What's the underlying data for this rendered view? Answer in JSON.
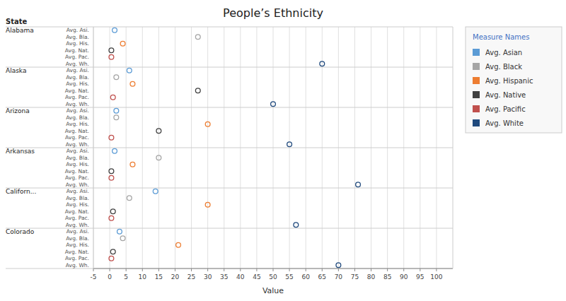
{
  "chart_data": {
    "type": "dot_plot",
    "title": "People’s Ethnicity",
    "xlabel": "Value",
    "ylabel": "State",
    "xlim": [
      -5,
      105
    ],
    "xticks": [
      -5,
      0,
      5,
      10,
      15,
      20,
      25,
      30,
      35,
      40,
      45,
      50,
      55,
      60,
      65,
      70,
      75,
      80,
      85,
      90,
      95,
      100
    ],
    "grid": true,
    "legend": "right",
    "legend_title": "Measure Names",
    "groups": [
      "Alabama",
      "Alaska",
      "Arizona",
      "Arkansas",
      "Californ...",
      "Colorado"
    ],
    "categories": [
      "Avg. Asi.",
      "Avg. Bla.",
      "Avg. His.",
      "Avg. Nat.",
      "Avg. Pac.",
      "Avg. Wh."
    ],
    "marker": "open_circle",
    "series": [
      {
        "name": "Avg. Asian",
        "color": "#5B9BD5",
        "values": [
          1.5,
          6.0,
          2.0,
          1.5,
          14.0,
          3.0
        ]
      },
      {
        "name": "Avg. Black",
        "color": "#A5A5A5",
        "values": [
          27.0,
          2.0,
          2.0,
          15.0,
          6.0,
          4.0
        ]
      },
      {
        "name": "Avg. Hispanic",
        "color": "#ED7D31",
        "values": [
          4.0,
          7.0,
          30.0,
          7.0,
          30.0,
          21.0
        ]
      },
      {
        "name": "Avg. Native",
        "color": "#404040",
        "values": [
          0.5,
          27.0,
          15.0,
          0.5,
          1.0,
          1.0
        ]
      },
      {
        "name": "Avg. Pacific",
        "color": "#C0504D",
        "values": [
          0.5,
          1.0,
          0.5,
          0.5,
          0.5,
          0.5
        ]
      },
      {
        "name": "Avg. White",
        "color": "#1F497D",
        "values": [
          65.0,
          50.0,
          55.0,
          76.0,
          57.0,
          70.0
        ]
      }
    ]
  }
}
